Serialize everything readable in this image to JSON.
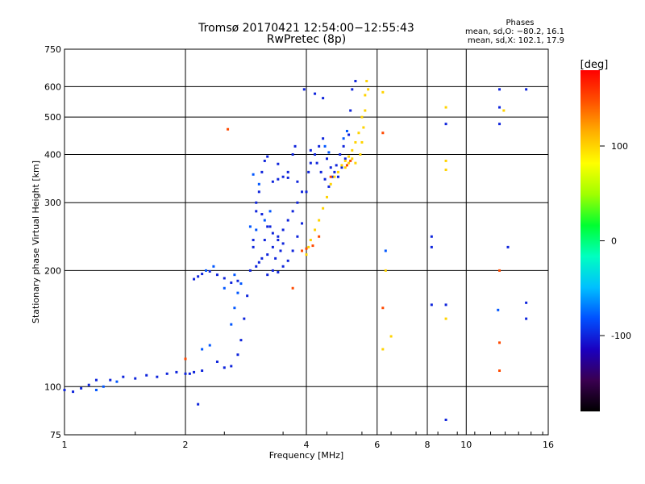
{
  "chart_data": {
    "type": "scatter",
    "title": "Tromsø 20170421 12:54:00−12:55:43",
    "subtitle": "RwPretec (8p)",
    "legend_text": {
      "heading": "Phases",
      "line1": "mean, sd,O: −80.2, 16.1",
      "line2": "mean, sd,X: 102.1, 17.9"
    },
    "xlabel": "Frequency [MHz]",
    "ylabel": "Stationary phase Virtual Height [km]",
    "x_scale": "log",
    "y_scale": "log",
    "xlim": [
      1,
      16
    ],
    "ylim": [
      75,
      750
    ],
    "x_ticks": [
      1,
      2,
      4,
      6,
      8,
      10,
      16
    ],
    "y_ticks": [
      75,
      100,
      200,
      300,
      400,
      500,
      600,
      750
    ],
    "grid": true,
    "colorbar": {
      "label": "[deg]",
      "range": [
        -180,
        180
      ],
      "ticks": [
        100,
        0,
        -100
      ],
      "colors": [
        "#000000",
        "#3a0050",
        "#1a00c0",
        "#0050ff",
        "#00c0ff",
        "#00ffc0",
        "#00ff30",
        "#a0ff00",
        "#ffff00",
        "#ffb000",
        "#ff5000",
        "#ff0000"
      ]
    },
    "series": [
      {
        "phase": -100,
        "points": [
          [
            1.0,
            98
          ],
          [
            1.05,
            97
          ],
          [
            1.1,
            99
          ],
          [
            1.15,
            101
          ],
          [
            1.2,
            104
          ],
          [
            1.3,
            104
          ],
          [
            1.4,
            106
          ],
          [
            1.5,
            105
          ],
          [
            1.6,
            107
          ],
          [
            1.7,
            106
          ],
          [
            1.8,
            108
          ],
          [
            1.9,
            109
          ],
          [
            2.0,
            108
          ],
          [
            2.05,
            108
          ],
          [
            2.1,
            109
          ],
          [
            2.2,
            110
          ],
          [
            2.1,
            190
          ],
          [
            2.15,
            193
          ],
          [
            2.2,
            196
          ],
          [
            2.3,
            199
          ],
          [
            2.4,
            195
          ],
          [
            2.5,
            191
          ],
          [
            2.6,
            186
          ],
          [
            2.7,
            188
          ],
          [
            2.4,
            116
          ],
          [
            2.5,
            112
          ],
          [
            2.6,
            113
          ],
          [
            2.7,
            121
          ],
          [
            2.75,
            132
          ],
          [
            2.8,
            150
          ],
          [
            2.85,
            172
          ],
          [
            2.9,
            200
          ],
          [
            2.95,
            240
          ],
          [
            3.0,
            285
          ],
          [
            3.05,
            320
          ],
          [
            3.1,
            360
          ],
          [
            3.15,
            385
          ],
          [
            3.2,
            395
          ],
          [
            3.0,
            205
          ],
          [
            3.1,
            215
          ],
          [
            3.2,
            220
          ],
          [
            3.3,
            230
          ],
          [
            3.4,
            245
          ],
          [
            3.5,
            255
          ],
          [
            3.6,
            270
          ],
          [
            3.7,
            285
          ],
          [
            3.8,
            300
          ],
          [
            3.9,
            320
          ],
          [
            3.2,
            195
          ],
          [
            3.3,
            200
          ],
          [
            3.4,
            198
          ],
          [
            3.5,
            205
          ],
          [
            3.6,
            212
          ],
          [
            3.7,
            225
          ],
          [
            3.8,
            245
          ],
          [
            3.9,
            265
          ],
          [
            2.95,
            230
          ],
          [
            3.05,
            210
          ],
          [
            3.15,
            240
          ],
          [
            3.25,
            260
          ],
          [
            3.35,
            215
          ],
          [
            3.45,
            225
          ],
          [
            3.0,
            300
          ],
          [
            3.1,
            280
          ],
          [
            3.2,
            260
          ],
          [
            3.3,
            250
          ],
          [
            3.4,
            240
          ],
          [
            3.5,
            235
          ],
          [
            4.0,
            320
          ],
          [
            4.05,
            360
          ],
          [
            4.1,
            380
          ],
          [
            4.2,
            400
          ],
          [
            4.3,
            420
          ],
          [
            4.4,
            440
          ],
          [
            4.5,
            390
          ],
          [
            4.6,
            370
          ],
          [
            4.7,
            360
          ],
          [
            4.8,
            350
          ],
          [
            4.9,
            370
          ],
          [
            5.0,
            390
          ],
          [
            5.1,
            450
          ],
          [
            5.15,
            520
          ],
          [
            5.2,
            590
          ],
          [
            5.3,
            620
          ],
          [
            4.1,
            410
          ],
          [
            4.25,
            380
          ],
          [
            4.35,
            360
          ],
          [
            4.45,
            345
          ],
          [
            4.55,
            330
          ],
          [
            4.65,
            350
          ],
          [
            4.75,
            375
          ],
          [
            4.85,
            400
          ],
          [
            4.95,
            420
          ],
          [
            3.3,
            340
          ],
          [
            3.4,
            345
          ],
          [
            3.5,
            350
          ],
          [
            3.6,
            348
          ],
          [
            3.8,
            340
          ],
          [
            3.7,
            400
          ],
          [
            3.75,
            420
          ],
          [
            3.6,
            360
          ],
          [
            3.4,
            378
          ],
          [
            3.95,
            590
          ],
          [
            4.2,
            575
          ],
          [
            4.4,
            560
          ],
          [
            8.2,
            245
          ],
          [
            8.2,
            230
          ],
          [
            8.9,
            480
          ],
          [
            8.9,
            82
          ],
          [
            12.1,
            590
          ],
          [
            12.1,
            530
          ],
          [
            12.1,
            480
          ],
          [
            12.7,
            230
          ],
          [
            14.1,
            590
          ],
          [
            14.1,
            165
          ],
          [
            14.1,
            150
          ],
          [
            8.2,
            163
          ],
          [
            8.9,
            163
          ],
          [
            2.15,
            90
          ]
        ]
      },
      {
        "phase": -80,
        "points": [
          [
            2.25,
            200
          ],
          [
            2.35,
            205
          ],
          [
            2.5,
            180
          ],
          [
            2.65,
            195
          ],
          [
            2.75,
            185
          ],
          [
            2.9,
            260
          ],
          [
            3.0,
            255
          ],
          [
            3.15,
            270
          ],
          [
            3.25,
            285
          ],
          [
            2.95,
            355
          ],
          [
            3.05,
            335
          ],
          [
            4.45,
            420
          ],
          [
            4.55,
            405
          ],
          [
            4.95,
            440
          ],
          [
            5.05,
            460
          ],
          [
            2.2,
            125
          ],
          [
            2.3,
            128
          ],
          [
            2.6,
            145
          ],
          [
            2.65,
            160
          ],
          [
            2.7,
            175
          ],
          [
            1.2,
            98
          ],
          [
            1.25,
            100
          ],
          [
            1.35,
            103
          ],
          [
            6.3,
            225
          ],
          [
            12.0,
            158
          ]
        ]
      },
      {
        "phase": 100,
        "points": [
          [
            4.0,
            220
          ],
          [
            4.05,
            230
          ],
          [
            4.1,
            240
          ],
          [
            4.2,
            255
          ],
          [
            4.3,
            270
          ],
          [
            4.4,
            290
          ],
          [
            4.5,
            310
          ],
          [
            4.6,
            335
          ],
          [
            4.7,
            350
          ],
          [
            4.8,
            360
          ],
          [
            4.9,
            375
          ],
          [
            5.0,
            385
          ],
          [
            5.1,
            395
          ],
          [
            5.2,
            410
          ],
          [
            5.3,
            430
          ],
          [
            5.4,
            455
          ],
          [
            5.5,
            500
          ],
          [
            5.6,
            570
          ],
          [
            5.65,
            620
          ],
          [
            5.45,
            400
          ],
          [
            5.5,
            430
          ],
          [
            5.55,
            470
          ],
          [
            5.6,
            520
          ],
          [
            5.7,
            590
          ],
          [
            5.0,
            370
          ],
          [
            5.1,
            380
          ],
          [
            5.2,
            390
          ],
          [
            5.3,
            380
          ],
          [
            6.2,
            580
          ],
          [
            6.3,
            200
          ],
          [
            6.5,
            135
          ],
          [
            6.2,
            125
          ],
          [
            8.9,
            530
          ],
          [
            8.9,
            385
          ],
          [
            8.9,
            365
          ],
          [
            8.9,
            150
          ],
          [
            12.4,
            520
          ]
        ]
      },
      {
        "phase": 150,
        "points": [
          [
            2.55,
            465
          ],
          [
            3.9,
            225
          ],
          [
            4.0,
            228
          ],
          [
            4.15,
            232
          ],
          [
            4.3,
            245
          ],
          [
            5.05,
            375
          ],
          [
            5.15,
            385
          ],
          [
            4.6,
            350
          ],
          [
            6.2,
            160
          ],
          [
            6.2,
            455
          ],
          [
            12.1,
            200
          ],
          [
            12.1,
            130
          ],
          [
            12.1,
            110
          ],
          [
            2.0,
            118
          ],
          [
            3.7,
            180
          ]
        ]
      }
    ]
  }
}
